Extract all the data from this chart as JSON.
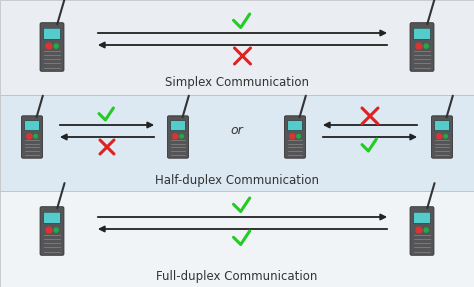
{
  "bg_color": "#f0f4f8",
  "row_colors": [
    "#eaeef3",
    "#dce8f2",
    "#f0f4f7"
  ],
  "labels": [
    "Simplex Communication",
    "Half-duplex Communication",
    "Full-duplex Communication"
  ],
  "green_color": "#22cc22",
  "red_color": "#dd2222",
  "arrow_color": "#222222",
  "text_color": "#333333",
  "label_fontsize": 8.5,
  "or_fontsize": 9,
  "body_color": "#555558",
  "screen_color": "#55cccc",
  "btn_red": "#dd3333",
  "btn_green": "#22aa44"
}
